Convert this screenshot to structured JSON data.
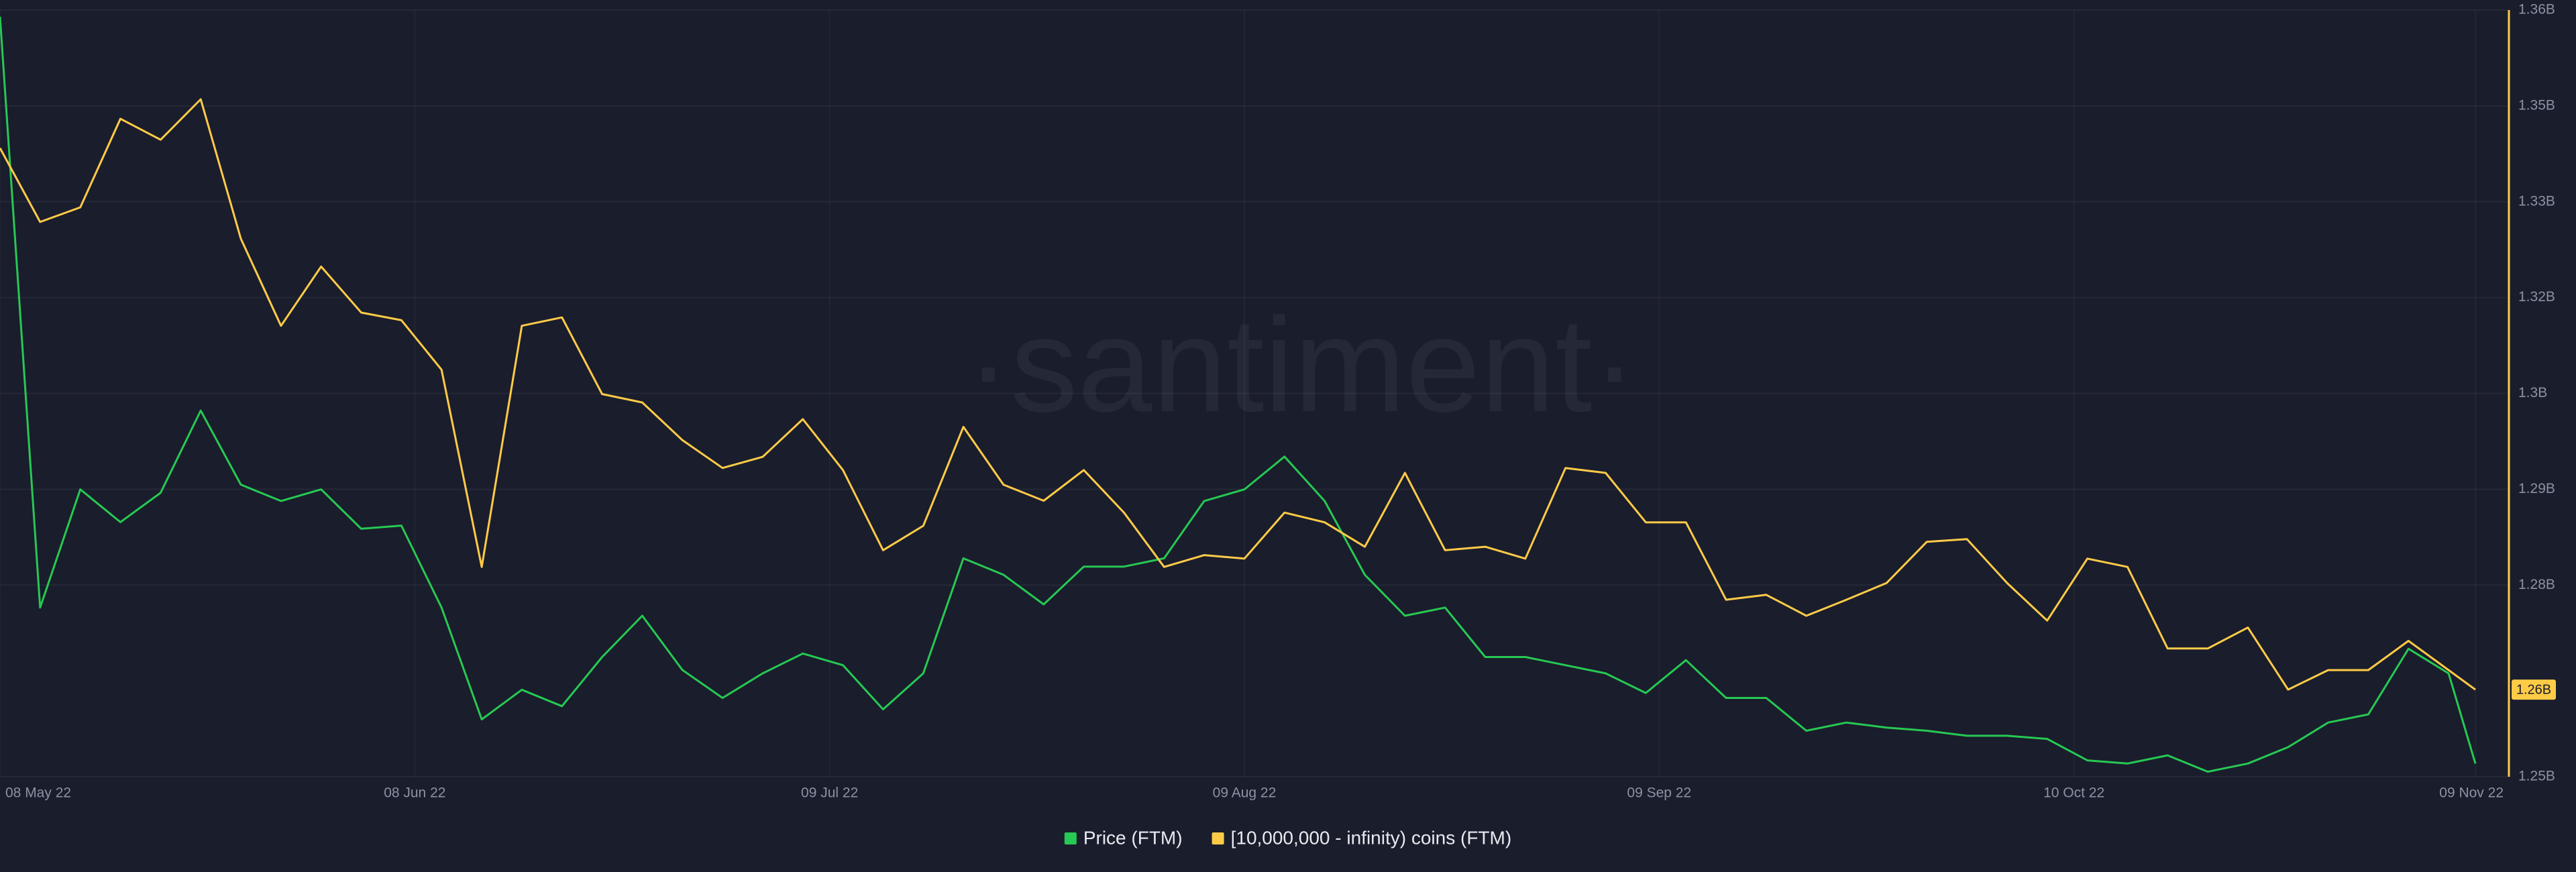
{
  "chart_data": {
    "type": "line",
    "watermark": "·santiment·",
    "x": [
      "2022-05-08",
      "2022-05-11",
      "2022-05-14",
      "2022-05-17",
      "2022-05-20",
      "2022-05-23",
      "2022-05-26",
      "2022-05-29",
      "2022-06-01",
      "2022-06-04",
      "2022-06-07",
      "2022-06-10",
      "2022-06-13",
      "2022-06-16",
      "2022-06-19",
      "2022-06-22",
      "2022-06-25",
      "2022-06-28",
      "2022-07-01",
      "2022-07-04",
      "2022-07-07",
      "2022-07-10",
      "2022-07-13",
      "2022-07-16",
      "2022-07-19",
      "2022-07-22",
      "2022-07-25",
      "2022-07-28",
      "2022-07-31",
      "2022-08-03",
      "2022-08-06",
      "2022-08-09",
      "2022-08-12",
      "2022-08-15",
      "2022-08-18",
      "2022-08-21",
      "2022-08-24",
      "2022-08-27",
      "2022-08-30",
      "2022-09-02",
      "2022-09-05",
      "2022-09-08",
      "2022-09-11",
      "2022-09-14",
      "2022-09-17",
      "2022-09-20",
      "2022-09-23",
      "2022-09-26",
      "2022-09-29",
      "2022-10-02",
      "2022-10-05",
      "2022-10-08",
      "2022-10-11",
      "2022-10-14",
      "2022-10-17",
      "2022-10-20",
      "2022-10-23",
      "2022-10-26",
      "2022-10-29",
      "2022-11-01",
      "2022-11-04",
      "2022-11-07",
      "2022-11-09"
    ],
    "xlim": [
      "2022-05-08",
      "2022-11-09"
    ],
    "xticks": [
      {
        "value": "2022-05-08",
        "label": "08 May 22"
      },
      {
        "value": "2022-06-08",
        "label": "08 Jun 22"
      },
      {
        "value": "2022-07-09",
        "label": "09 Jul 22"
      },
      {
        "value": "2022-08-09",
        "label": "09 Aug 22"
      },
      {
        "value": "2022-09-09",
        "label": "09 Sep 22"
      },
      {
        "value": "2022-10-10",
        "label": "10 Oct 22"
      },
      {
        "value": "2022-11-09",
        "label": "09 Nov 22"
      }
    ],
    "ylim": [
      0.19,
      0.48
    ],
    "y2lim": [
      1.25,
      1.36
    ],
    "y2ticks": [
      {
        "value": 1.25,
        "label": "1.25B"
      },
      {
        "value": 1.2775,
        "label": "1.28B"
      },
      {
        "value": 1.29125,
        "label": "1.29B"
      },
      {
        "value": 1.305,
        "label": "1.3B"
      },
      {
        "value": 1.31875,
        "label": "1.32B"
      },
      {
        "value": 1.3325,
        "label": "1.33B"
      },
      {
        "value": 1.34625,
        "label": "1.35B"
      },
      {
        "value": 1.36,
        "label": "1.36B"
      }
    ],
    "grid": true,
    "legend": "bottom",
    "series": [
      {
        "name": "Price (FTM)",
        "color": "#26c953",
        "values": [
          0.4775,
          0.254,
          0.2987,
          0.2863,
          0.2974,
          0.3285,
          0.3005,
          0.2943,
          0.2987,
          0.2838,
          0.285,
          0.254,
          0.2117,
          0.2229,
          0.2167,
          0.2353,
          0.2509,
          0.2304,
          0.2198,
          0.2291,
          0.2366,
          0.2322,
          0.2155,
          0.2291,
          0.2726,
          0.2664,
          0.2552,
          0.2695,
          0.2695,
          0.2726,
          0.2943,
          0.2987,
          0.3111,
          0.2943,
          0.2664,
          0.2509,
          0.254,
          0.2353,
          0.2353,
          0.2322,
          0.2291,
          0.2217,
          0.2341,
          0.2198,
          0.2198,
          0.2074,
          0.2105,
          0.2086,
          0.2074,
          0.2055,
          0.2055,
          0.2043,
          0.1962,
          0.195,
          0.1981,
          0.1919,
          0.195,
          0.2012,
          0.2105,
          0.2136,
          0.2384,
          0.2291,
          0.195
        ]
      },
      {
        "name": "[10,000,000 - infinity) coins (FTM)",
        "color": "#ffcb47",
        "axis": "y2",
        "values": [
          1.3402,
          1.3296,
          1.3317,
          1.3444,
          1.3414,
          1.3472,
          1.3272,
          1.3147,
          1.3232,
          1.3166,
          1.3155,
          1.3084,
          1.2801,
          1.3147,
          1.3159,
          1.3049,
          1.3037,
          1.2983,
          1.2943,
          1.2959,
          1.3013,
          1.294,
          1.2825,
          1.286,
          1.3002,
          1.2919,
          1.2896,
          1.294,
          1.2879,
          1.2801,
          1.2818,
          1.2813,
          1.2879,
          1.2865,
          1.283,
          1.2936,
          1.2825,
          1.283,
          1.2813,
          1.2943,
          1.2936,
          1.2865,
          1.2865,
          1.2754,
          1.2761,
          1.2731,
          1.2754,
          1.2778,
          1.2837,
          1.2841,
          1.2778,
          1.2724,
          1.2813,
          1.2801,
          1.2684,
          1.2684,
          1.2714,
          1.2625,
          1.2653,
          1.2653,
          1.2695,
          1.2653,
          1.2625
        ],
        "value_labels": [
          null,
          null,
          null,
          null,
          null,
          null,
          null,
          null,
          null,
          null,
          null,
          null,
          null,
          null,
          null,
          null,
          null,
          null,
          null,
          null,
          null,
          null,
          null,
          null,
          null,
          null,
          null,
          null,
          null,
          null,
          null,
          null,
          null,
          null,
          null,
          null,
          null,
          null,
          null,
          null,
          null,
          null,
          null,
          null,
          null,
          null,
          null,
          null,
          null,
          null,
          null,
          null,
          null,
          null,
          null,
          null,
          null,
          null,
          null,
          null,
          null,
          null,
          "1.26B"
        ]
      }
    ]
  }
}
